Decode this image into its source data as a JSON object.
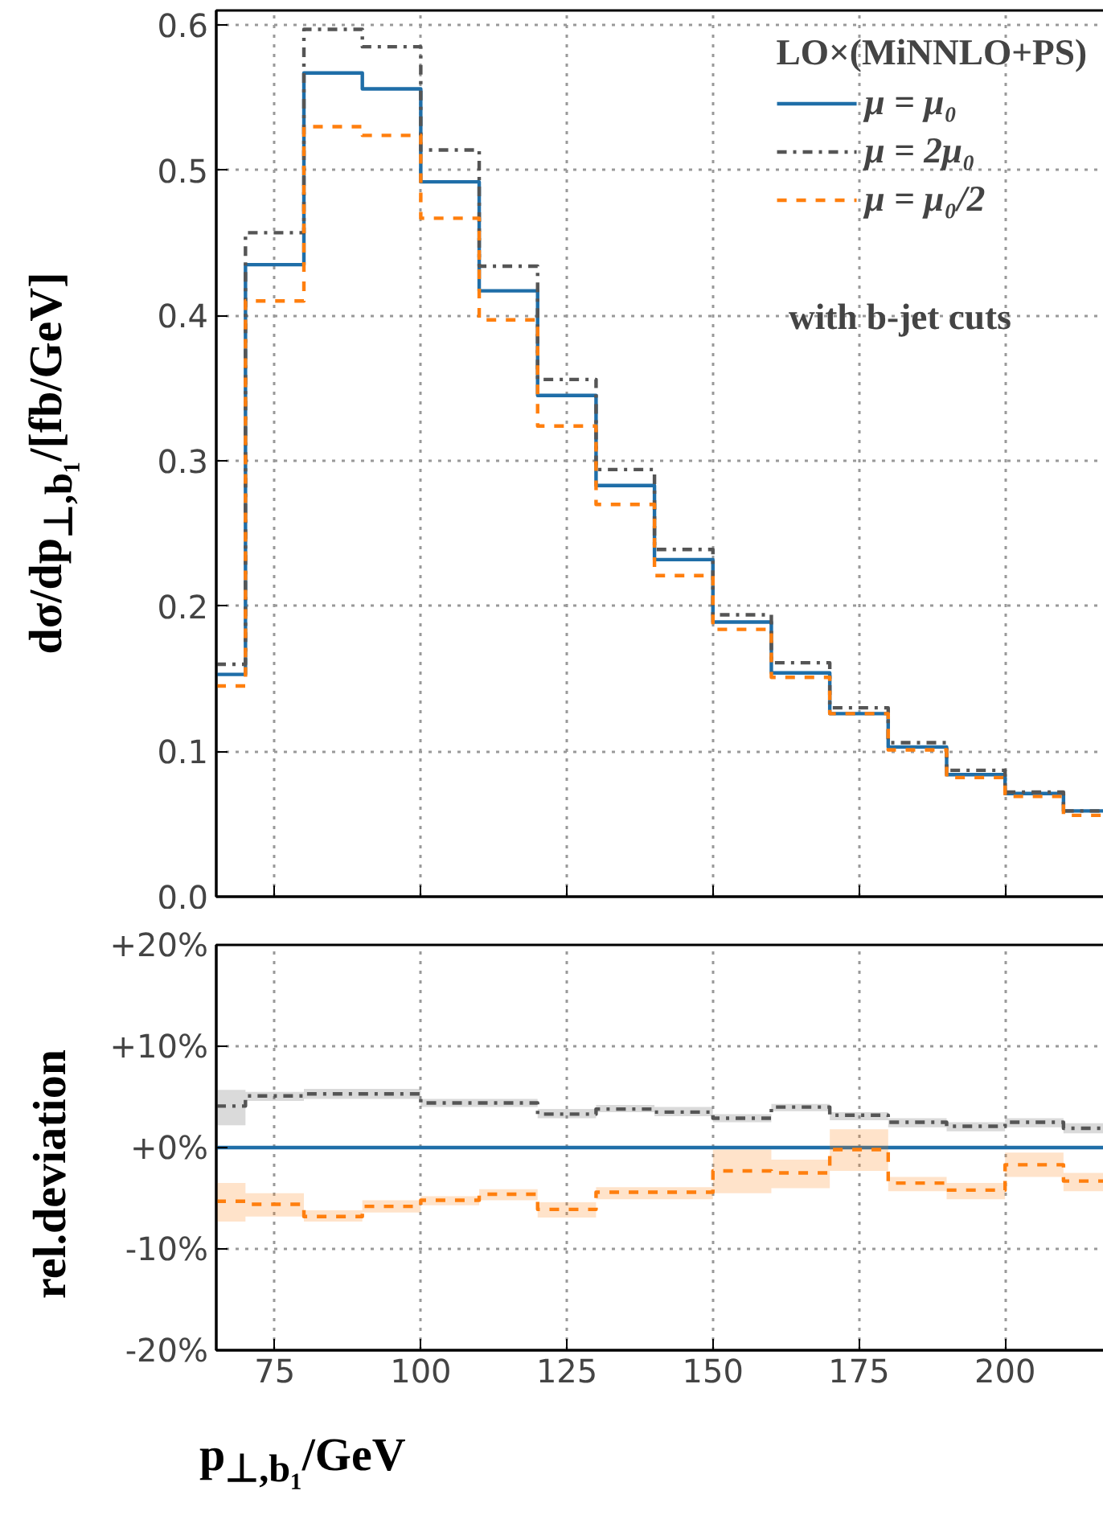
{
  "chart_data": [
    {
      "type": "histogram",
      "ylabel": "dσ/dp$_{⊥,b₁}$/[fb/GeV]",
      "legend_title": "LO×(MiNNLO+PS)",
      "annotations": [
        "with b-jet cuts"
      ],
      "bins": [
        65,
        70,
        80,
        90,
        100,
        110,
        120,
        130,
        140,
        150,
        160,
        170,
        180,
        190,
        200,
        210,
        220
      ],
      "xlim": [
        65,
        218
      ],
      "xticks": [
        75,
        100,
        125,
        150,
        175,
        200
      ],
      "ylim": [
        0,
        0.61
      ],
      "yticks": [
        {
          "value": 0,
          "label": "0.0"
        },
        0.1,
        0.2,
        0.3,
        0.4,
        0.5,
        0.6
      ],
      "tick_labels": "y",
      "grid": true,
      "legend": "top right",
      "series": [
        {
          "name": "μ = μ₀",
          "color": "#1f6ea8",
          "line_style": "solid",
          "values": [
            0.153,
            0.435,
            0.567,
            0.556,
            0.492,
            0.417,
            0.345,
            0.283,
            0.232,
            0.189,
            0.154,
            0.126,
            0.103,
            0.084,
            0.071,
            0.059
          ]
        },
        {
          "name": "μ = 2μ₀",
          "color": "#555555",
          "line_style": "dashdot",
          "values": [
            0.16,
            0.457,
            0.597,
            0.585,
            0.514,
            0.434,
            0.356,
            0.294,
            0.239,
            0.194,
            0.161,
            0.13,
            0.106,
            0.087,
            0.072,
            0.059
          ]
        },
        {
          "name": "μ = μ₀/2",
          "color": "#ff7f0e",
          "line_style": "dashed",
          "values": [
            0.145,
            0.41,
            0.53,
            0.524,
            0.467,
            0.397,
            0.324,
            0.27,
            0.221,
            0.184,
            0.151,
            0.126,
            0.101,
            0.082,
            0.069,
            0.056
          ]
        }
      ]
    },
    {
      "type": "step",
      "xlabel": "p$_{⊥,b₁}$/GeV",
      "ylabel": "rel.deviation",
      "x": [
        65,
        70,
        80,
        90,
        100,
        110,
        120,
        130,
        140,
        150,
        160,
        170,
        180,
        190,
        200,
        210,
        218
      ],
      "xlim": [
        65,
        218
      ],
      "xticks": [
        75,
        100,
        125,
        150,
        175,
        200
      ],
      "ylim": [
        -20,
        20
      ],
      "yticks": [
        {
          "value": -20,
          "label": "-20%"
        },
        {
          "value": -10,
          "label": "-10%"
        },
        {
          "value": 0,
          "label": "+0%"
        },
        {
          "value": 10,
          "label": "+10%"
        },
        {
          "value": 20,
          "label": "+20%"
        }
      ],
      "grid": true,
      "series": [
        {
          "color": "#1f6ea8",
          "line_style": "solid",
          "values": [
            0,
            0,
            0,
            0,
            0,
            0,
            0,
            0,
            0,
            0,
            0,
            0,
            0,
            0,
            0,
            0,
            0
          ]
        },
        {
          "color": "#555555",
          "line_style": "dashdot",
          "values": [
            4.1,
            5.1,
            5.3,
            5.3,
            4.4,
            4.4,
            3.3,
            3.8,
            3.5,
            2.9,
            4.0,
            3.2,
            2.5,
            2.1,
            2.5,
            1.9,
            1.9
          ],
          "lower": [
            2.2,
            4.6,
            4.8,
            4.8,
            4.0,
            4.0,
            2.9,
            3.5,
            3.1,
            2.5,
            3.6,
            2.7,
            2.0,
            1.6,
            2.0,
            1.4,
            1.4
          ],
          "upper": [
            5.7,
            5.5,
            5.8,
            5.8,
            4.8,
            4.8,
            3.8,
            4.2,
            4.0,
            3.3,
            4.3,
            3.5,
            2.9,
            2.5,
            2.9,
            2.4,
            2.4
          ]
        },
        {
          "color": "#ff7f0e",
          "line_style": "dashed",
          "values": [
            -5.3,
            -5.6,
            -6.8,
            -5.8,
            -5.2,
            -4.6,
            -6.1,
            -4.4,
            -4.4,
            -2.3,
            -2.5,
            -0.2,
            -3.5,
            -4.2,
            -1.7,
            -3.3,
            -3.3
          ],
          "lower": [
            -7.3,
            -6.8,
            -7.3,
            -6.4,
            -5.7,
            -5.2,
            -6.9,
            -5.1,
            -5.1,
            -4.5,
            -4.0,
            -2.3,
            -4.3,
            -5.1,
            -2.9,
            -4.3,
            -4.3
          ],
          "upper": [
            -3.5,
            -4.5,
            -6.2,
            -5.2,
            -4.8,
            -4.1,
            -5.4,
            -3.9,
            -3.9,
            -0.2,
            -1.2,
            1.8,
            -2.9,
            -3.5,
            -0.5,
            -2.5,
            -2.5
          ]
        }
      ]
    }
  ]
}
